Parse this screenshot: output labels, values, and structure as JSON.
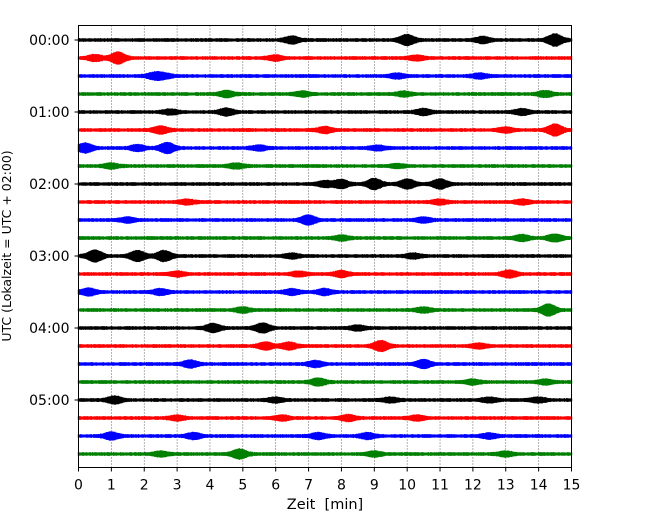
{
  "chart_data": {
    "type": "line",
    "title": "",
    "xlabel": "Zeit  [min]",
    "ylabel": "UTC (Lokalzeit = UTC + 02:00)",
    "xlim": [
      0,
      15
    ],
    "x_ticks": [
      "0",
      "1",
      "2",
      "3",
      "4",
      "5",
      "6",
      "7",
      "8",
      "9",
      "10",
      "11",
      "12",
      "13",
      "14",
      "15"
    ],
    "y_tick_labels": [
      "00:00",
      "01:00",
      "02:00",
      "03:00",
      "04:00",
      "05:00"
    ],
    "trace_colors": [
      "#000000",
      "#ff0000",
      "#0000ff",
      "#008000"
    ],
    "grid": "vertical dotted lines at each minute",
    "traces": [
      {
        "start": "00:00",
        "color": "#000000",
        "bursts": [
          [
            6.5,
            0.6
          ],
          [
            10,
            0.9
          ],
          [
            12.3,
            0.5
          ],
          [
            14.5,
            1.0
          ]
        ]
      },
      {
        "start": "00:15",
        "color": "#ff0000",
        "bursts": [
          [
            1.2,
            1.0
          ],
          [
            0.5,
            0.5
          ],
          [
            6,
            0.4
          ],
          [
            10.3,
            0.4
          ]
        ]
      },
      {
        "start": "00:30",
        "color": "#0000ff",
        "bursts": [
          [
            2.3,
            0.5
          ],
          [
            2.6,
            0.4
          ],
          [
            9.7,
            0.4
          ],
          [
            12.2,
            0.4
          ]
        ]
      },
      {
        "start": "00:45",
        "color": "#008000",
        "bursts": [
          [
            4.5,
            0.5
          ],
          [
            6.8,
            0.4
          ],
          [
            9.9,
            0.4
          ],
          [
            14.2,
            0.5
          ]
        ]
      },
      {
        "start": "01:00",
        "color": "#000000",
        "bursts": [
          [
            2.8,
            0.4
          ],
          [
            4.5,
            0.6
          ],
          [
            10.5,
            0.5
          ],
          [
            13.5,
            0.5
          ]
        ]
      },
      {
        "start": "01:15",
        "color": "#ff0000",
        "bursts": [
          [
            2.5,
            0.6
          ],
          [
            7.5,
            0.5
          ],
          [
            13.0,
            0.4
          ],
          [
            14.5,
            1.0
          ]
        ]
      },
      {
        "start": "01:30",
        "color": "#0000ff",
        "bursts": [
          [
            0.2,
            0.8
          ],
          [
            1.8,
            0.5
          ],
          [
            2.7,
            0.9
          ],
          [
            5.5,
            0.4
          ],
          [
            9.1,
            0.4
          ]
        ]
      },
      {
        "start": "01:45",
        "color": "#008000",
        "bursts": [
          [
            1.0,
            0.4
          ],
          [
            4.8,
            0.4
          ],
          [
            9.7,
            0.3
          ]
        ]
      },
      {
        "start": "02:00",
        "color": "#000000",
        "bursts": [
          [
            7.5,
            0.5
          ],
          [
            8.0,
            0.7
          ],
          [
            9.0,
            0.9
          ],
          [
            10.0,
            0.8
          ],
          [
            11.0,
            0.8
          ]
        ]
      },
      {
        "start": "02:15",
        "color": "#ff0000",
        "bursts": [
          [
            3.3,
            0.4
          ],
          [
            11.0,
            0.4
          ],
          [
            13.5,
            0.4
          ]
        ]
      },
      {
        "start": "02:30",
        "color": "#0000ff",
        "bursts": [
          [
            1.5,
            0.4
          ],
          [
            7.0,
            0.8
          ],
          [
            10.5,
            0.4
          ]
        ]
      },
      {
        "start": "02:45",
        "color": "#008000",
        "bursts": [
          [
            8.0,
            0.4
          ],
          [
            13.5,
            0.5
          ],
          [
            14.5,
            0.6
          ]
        ]
      },
      {
        "start": "03:00",
        "color": "#000000",
        "bursts": [
          [
            0.5,
            1.0
          ],
          [
            1.8,
            0.9
          ],
          [
            2.6,
            0.9
          ],
          [
            6.5,
            0.4
          ],
          [
            10.2,
            0.4
          ]
        ]
      },
      {
        "start": "03:15",
        "color": "#ff0000",
        "bursts": [
          [
            3.0,
            0.4
          ],
          [
            6.7,
            0.4
          ],
          [
            8.0,
            0.5
          ],
          [
            13.1,
            0.6
          ]
        ]
      },
      {
        "start": "03:30",
        "color": "#0000ff",
        "bursts": [
          [
            0.3,
            0.6
          ],
          [
            2.5,
            0.5
          ],
          [
            6.5,
            0.5
          ],
          [
            7.5,
            0.5
          ]
        ]
      },
      {
        "start": "03:45",
        "color": "#008000",
        "bursts": [
          [
            5.0,
            0.4
          ],
          [
            10.5,
            0.4
          ],
          [
            14.3,
            1.0
          ]
        ]
      },
      {
        "start": "04:00",
        "color": "#000000",
        "bursts": [
          [
            4.1,
            0.7
          ],
          [
            5.6,
            0.8
          ],
          [
            8.5,
            0.4
          ]
        ]
      },
      {
        "start": "04:15",
        "color": "#ff0000",
        "bursts": [
          [
            5.7,
            0.6
          ],
          [
            6.4,
            0.6
          ],
          [
            9.2,
            0.9
          ],
          [
            12.2,
            0.4
          ]
        ]
      },
      {
        "start": "04:30",
        "color": "#0000ff",
        "bursts": [
          [
            3.4,
            0.6
          ],
          [
            7.2,
            0.5
          ],
          [
            10.5,
            0.7
          ]
        ]
      },
      {
        "start": "04:45",
        "color": "#008000",
        "bursts": [
          [
            7.3,
            0.6
          ],
          [
            12.0,
            0.4
          ],
          [
            14.2,
            0.4
          ]
        ]
      },
      {
        "start": "05:00",
        "color": "#000000",
        "bursts": [
          [
            1.1,
            0.6
          ],
          [
            6.0,
            0.4
          ],
          [
            9.5,
            0.4
          ],
          [
            12.5,
            0.4
          ],
          [
            14.0,
            0.4
          ]
        ]
      },
      {
        "start": "05:15",
        "color": "#ff0000",
        "bursts": [
          [
            3.0,
            0.4
          ],
          [
            6.2,
            0.4
          ],
          [
            8.2,
            0.5
          ],
          [
            10.3,
            0.4
          ]
        ]
      },
      {
        "start": "05:30",
        "color": "#0000ff",
        "bursts": [
          [
            1.0,
            0.6
          ],
          [
            3.5,
            0.5
          ],
          [
            7.3,
            0.5
          ],
          [
            8.8,
            0.5
          ],
          [
            12.5,
            0.4
          ]
        ]
      },
      {
        "start": "05:45",
        "color": "#008000",
        "bursts": [
          [
            4.9,
            0.8
          ],
          [
            2.5,
            0.4
          ],
          [
            9.0,
            0.4
          ],
          [
            13.0,
            0.4
          ]
        ]
      }
    ]
  }
}
